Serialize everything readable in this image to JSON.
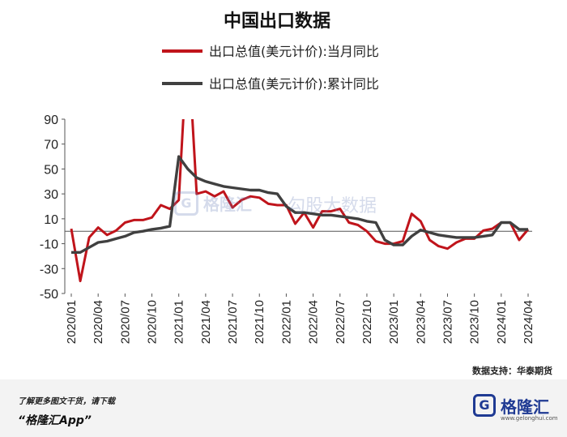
{
  "chart_data": {
    "type": "line",
    "title": "中国出口数据",
    "legend": {
      "placement": "top",
      "entries": [
        "出口总值(美元计价):当月同比",
        "出口总值(美元计价):累计同比"
      ]
    },
    "y_ticks": [
      "90",
      "70",
      "50",
      "30",
      "10",
      "-10",
      "-30",
      "-50"
    ],
    "ylim": [
      -50,
      90
    ],
    "x_ticks": [
      "2020/01",
      "2020/04",
      "2020/07",
      "2020/10",
      "2021/01",
      "2021/04",
      "2021/07",
      "2021/10",
      "2022/01",
      "2022/04",
      "2022/07",
      "2022/10",
      "2023/01",
      "2023/04",
      "2023/07",
      "2023/10",
      "2024/01",
      "2024/04"
    ],
    "x": [
      "2020/01",
      "2020/02",
      "2020/03",
      "2020/04",
      "2020/05",
      "2020/06",
      "2020/07",
      "2020/08",
      "2020/09",
      "2020/10",
      "2020/11",
      "2020/12",
      "2021/01",
      "2021/02",
      "2021/03",
      "2021/04",
      "2021/05",
      "2021/06",
      "2021/07",
      "2021/08",
      "2021/09",
      "2021/10",
      "2021/11",
      "2021/12",
      "2022/01",
      "2022/02",
      "2022/03",
      "2022/04",
      "2022/05",
      "2022/06",
      "2022/07",
      "2022/08",
      "2022/09",
      "2022/10",
      "2022/11",
      "2022/12",
      "2023/01",
      "2023/02",
      "2023/03",
      "2023/04",
      "2023/05",
      "2023/06",
      "2023/07",
      "2023/08",
      "2023/09",
      "2023/10",
      "2023/11",
      "2023/12",
      "2024/01",
      "2024/02",
      "2024/03",
      "2024/04"
    ],
    "series": [
      {
        "name": "出口总值(美元计价):当月同比",
        "color": "#c0141b",
        "values": [
          2,
          -40,
          -5,
          3,
          -3,
          0.5,
          7,
          9,
          9,
          11,
          21,
          18,
          25,
          155,
          30,
          32,
          28,
          32,
          19,
          25,
          28,
          27,
          22,
          21,
          21,
          6,
          15,
          3,
          16,
          16,
          18,
          7,
          5,
          0,
          -8,
          -10,
          -10,
          -8,
          14,
          8,
          -7,
          -12,
          -14,
          -9,
          -6,
          -6,
          0.5,
          2,
          7,
          7,
          -7,
          1.5
        ]
      },
      {
        "name": "出口总值(美元计价):累计同比",
        "color": "#404040",
        "values": [
          -17,
          -17,
          -13,
          -9,
          -8,
          -6,
          -4,
          -1,
          0,
          1.5,
          2.5,
          4,
          60,
          50,
          43,
          40,
          38,
          36,
          35,
          34,
          33,
          33,
          31,
          30,
          20,
          15,
          15,
          14,
          13,
          13,
          12,
          11,
          10,
          8,
          7,
          -7,
          -11,
          -11,
          -4,
          1,
          -1,
          -3,
          -4,
          -5,
          -5,
          -5,
          -4,
          -3,
          7,
          7,
          1.5,
          1.5
        ]
      }
    ]
  },
  "source": "数据支持：华泰期货",
  "footer": {
    "note": "了解更多图文干货，请下载",
    "app": "“格隆汇App”",
    "brand_name": "格隆汇",
    "brand_domain": "www.gelonghui.com"
  },
  "watermark": {
    "mark": "G",
    "name": "格隆汇",
    "name2": "勾股大数据"
  },
  "colors": {
    "axis": "#555555",
    "brand": "#1f3a93"
  }
}
